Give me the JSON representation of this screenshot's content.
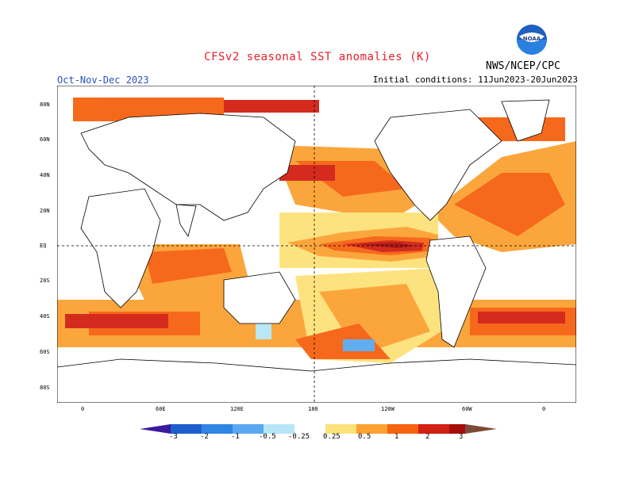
{
  "header": {
    "title": "CFSv2 seasonal SST anomalies (K)",
    "season": "Oct-Nov-Dec 2023",
    "initial_conditions": "Initial conditions: 11Jun2023-20Jun2023",
    "agency": "NWS/NCEP/CPC",
    "logo_text": "NOAA"
  },
  "map": {
    "lat_labels": [
      "80N",
      "60N",
      "40N",
      "20N",
      "EQ",
      "20S",
      "40S",
      "60S",
      "80S"
    ],
    "lon_labels": [
      "0",
      "60E",
      "120E",
      "180",
      "120W",
      "60W",
      "0"
    ]
  },
  "legend": {
    "labels": [
      "-3",
      "-2",
      "-1",
      "-0.5",
      "-0.25",
      "0.25",
      "0.5",
      "1",
      "2",
      "3"
    ],
    "colors": {
      "lt_m3": "#3a1a9c",
      "m3_m2": "#1e5fcf",
      "m2_m1": "#2f86e4",
      "m1_m05": "#5aa8f0",
      "m05_m025": "#b6e6f8",
      "neutral": "#ffffff",
      "p025_p05": "#fde27a",
      "p05_p1": "#fba232",
      "p1_p2": "#f66210",
      "p2_p3": "#d22012",
      "gt_p3": "#a50e0b",
      "top": "#7d4a3a"
    }
  }
}
